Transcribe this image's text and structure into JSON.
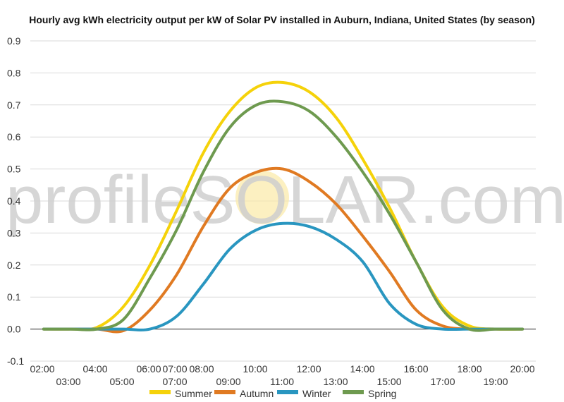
{
  "chart_data": {
    "type": "line",
    "title": "Hourly avg kWh electricity output per kW of Solar PV installed in Auburn, Indiana, United States (by season)",
    "xlabel": "",
    "ylabel": "",
    "x_ticks_upper": [
      "02:00",
      "04:00",
      "06:00",
      "07:00",
      "08:00",
      "10:00",
      "12:00",
      "14:00",
      "16:00",
      "18:00",
      "20:00"
    ],
    "x_ticks_lower": [
      "03:00",
      "05:00",
      "07:00",
      "09:00",
      "11:00",
      "13:00",
      "15:00",
      "17:00",
      "19:00"
    ],
    "y_ticks": [
      "0.9",
      "0.8",
      "0.7",
      "0.6",
      "0.5",
      "0.4",
      "0.3",
      "0.2",
      "0.1",
      "0.0",
      "-0.1"
    ],
    "ylim": [
      -0.1,
      0.9
    ],
    "grid": true,
    "legend_position": "bottom",
    "watermark": "profileSOLAR.com",
    "x_hours": [
      2,
      3,
      4,
      5,
      6,
      7,
      8,
      9,
      10,
      11,
      12,
      13,
      14,
      15,
      16,
      17,
      18,
      19,
      20
    ],
    "series": [
      {
        "name": "Summer",
        "color": "#f5d20a",
        "values": [
          0.0,
          0.0,
          0.005,
          0.07,
          0.2,
          0.37,
          0.55,
          0.68,
          0.755,
          0.77,
          0.74,
          0.66,
          0.53,
          0.38,
          0.21,
          0.07,
          0.01,
          0.0,
          0.0
        ]
      },
      {
        "name": "Autumn",
        "color": "#e07a22",
        "values": [
          0.0,
          0.0,
          0.0,
          -0.005,
          0.06,
          0.17,
          0.32,
          0.44,
          0.49,
          0.5,
          0.46,
          0.39,
          0.29,
          0.18,
          0.06,
          0.01,
          0.0,
          0.0,
          0.0
        ]
      },
      {
        "name": "Winter",
        "color": "#2996c0",
        "values": [
          0.0,
          0.0,
          0.0,
          0.0,
          0.0,
          0.04,
          0.14,
          0.25,
          0.31,
          0.33,
          0.32,
          0.28,
          0.21,
          0.08,
          0.015,
          0.0,
          0.0,
          0.0,
          0.0
        ]
      },
      {
        "name": "Spring",
        "color": "#6e9a4f",
        "values": [
          0.0,
          0.0,
          0.0,
          0.03,
          0.16,
          0.31,
          0.49,
          0.63,
          0.7,
          0.71,
          0.68,
          0.6,
          0.49,
          0.36,
          0.21,
          0.06,
          0.0,
          0.0,
          0.0
        ]
      }
    ]
  }
}
